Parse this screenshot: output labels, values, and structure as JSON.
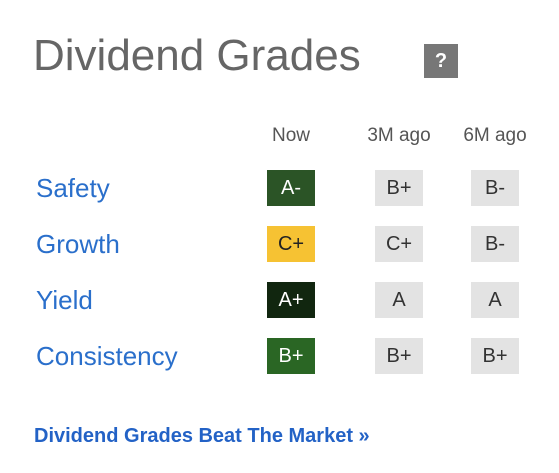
{
  "header": {
    "title": "Dividend Grades",
    "help": "?"
  },
  "columns": [
    "Now",
    "3M ago",
    "6M ago"
  ],
  "rows": [
    {
      "label": "Safety",
      "grades": [
        "A-",
        "B+",
        "B-"
      ],
      "color": "#2b5426"
    },
    {
      "label": "Growth",
      "grades": [
        "C+",
        "C+",
        "B-"
      ],
      "color": "#f6c233"
    },
    {
      "label": "Yield",
      "grades": [
        "A+",
        "A",
        "A"
      ],
      "color": "#11260f"
    },
    {
      "label": "Consistency",
      "grades": [
        "B+",
        "B+",
        "B+"
      ],
      "color": "#2a6624"
    }
  ],
  "link": "Dividend Grades Beat The Market »"
}
